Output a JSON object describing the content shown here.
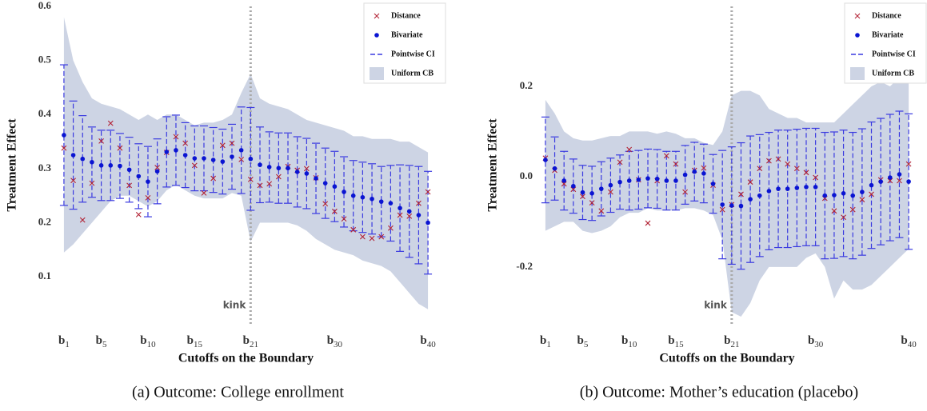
{
  "chart_data": [
    {
      "type": "errorbar",
      "caption": "(a) Outcome: College enrollment",
      "xlabel": "Cutoffs on the Boundary",
      "ylabel": "Treatment Effect",
      "x": [
        1,
        2,
        3,
        4,
        5,
        6,
        7,
        8,
        9,
        10,
        11,
        12,
        13,
        14,
        15,
        16,
        17,
        18,
        19,
        20,
        21,
        22,
        23,
        24,
        25,
        26,
        27,
        28,
        29,
        30,
        31,
        32,
        33,
        34,
        35,
        36,
        37,
        38,
        39,
        40
      ],
      "xlim": [
        0.15,
        40.85
      ],
      "xticks": [
        {
          "value": 1,
          "label": "b1"
        },
        {
          "value": 5,
          "label": "b5"
        },
        {
          "value": 10,
          "label": "b10"
        },
        {
          "value": 15,
          "label": "b15"
        },
        {
          "value": 21,
          "label": "b21"
        },
        {
          "value": 30,
          "label": "b30"
        },
        {
          "value": 40,
          "label": "b40"
        }
      ],
      "ylim": [
        0.013,
        0.6
      ],
      "yticks": [
        0.1,
        0.2,
        0.3,
        0.4,
        0.5,
        0.6
      ],
      "legend": "upper right",
      "annotation": {
        "text": "kink",
        "x": 21
      },
      "series": [
        {
          "name": "Distance",
          "color": "#b22234",
          "marker": "x",
          "values": [
            0.338,
            0.278,
            0.205,
            0.273,
            0.351,
            0.384,
            0.338,
            0.269,
            0.215,
            0.246,
            0.302,
            0.33,
            0.359,
            0.347,
            0.306,
            0.255,
            0.282,
            0.343,
            0.347,
            0.317,
            0.28,
            0.269,
            0.272,
            0.285,
            0.304,
            0.297,
            0.3,
            0.283,
            0.235,
            0.221,
            0.207,
            0.187,
            0.174,
            0.171,
            0.174,
            0.19,
            0.214,
            0.212,
            0.236,
            0.257
          ]
        },
        {
          "name": "Bivariate",
          "color": "#0a14d2",
          "marker": "dot",
          "values": [
            0.362,
            0.325,
            0.318,
            0.312,
            0.306,
            0.306,
            0.305,
            0.298,
            0.286,
            0.276,
            0.295,
            0.331,
            0.334,
            0.325,
            0.319,
            0.319,
            0.316,
            0.313,
            0.322,
            0.334,
            0.318,
            0.307,
            0.303,
            0.301,
            0.301,
            0.294,
            0.291,
            0.282,
            0.273,
            0.267,
            0.257,
            0.25,
            0.247,
            0.244,
            0.239,
            0.236,
            0.227,
            0.221,
            0.214,
            0.2
          ]
        }
      ],
      "ci": {
        "name": "Pointwise CI",
        "color": "#3a3ae0",
        "error": [
          0.13,
          0.1,
          0.08,
          0.065,
          0.065,
          0.065,
          0.06,
          0.06,
          0.06,
          0.065,
          0.06,
          0.065,
          0.065,
          0.06,
          0.06,
          0.06,
          0.06,
          0.06,
          0.06,
          0.08,
          0.095,
          0.07,
          0.065,
          0.065,
          0.065,
          0.065,
          0.065,
          0.065,
          0.065,
          0.065,
          0.065,
          0.065,
          0.065,
          0.065,
          0.065,
          0.07,
          0.08,
          0.085,
          0.09,
          0.095
        ]
      },
      "band": {
        "name": "Uniform CB",
        "color": "#cdd4e4",
        "upper": [
          0.58,
          0.5,
          0.46,
          0.43,
          0.42,
          0.415,
          0.41,
          0.4,
          0.39,
          0.4,
          0.39,
          0.4,
          0.4,
          0.39,
          0.38,
          0.385,
          0.385,
          0.39,
          0.4,
          0.44,
          0.475,
          0.43,
          0.42,
          0.415,
          0.41,
          0.4,
          0.39,
          0.385,
          0.38,
          0.375,
          0.37,
          0.36,
          0.36,
          0.355,
          0.355,
          0.355,
          0.35,
          0.35,
          0.34,
          0.33
        ],
        "lower": [
          0.145,
          0.16,
          0.18,
          0.2,
          0.22,
          0.24,
          0.25,
          0.25,
          0.24,
          0.23,
          0.24,
          0.26,
          0.27,
          0.26,
          0.25,
          0.245,
          0.245,
          0.245,
          0.255,
          0.25,
          0.165,
          0.2,
          0.2,
          0.2,
          0.2,
          0.195,
          0.185,
          0.17,
          0.16,
          0.15,
          0.145,
          0.14,
          0.13,
          0.125,
          0.12,
          0.11,
          0.09,
          0.07,
          0.05,
          0.04
        ]
      }
    },
    {
      "type": "errorbar",
      "caption": "(b) Outcome: Mother’s education (placebo)",
      "xlabel": "Cutoffs on the Boundary",
      "ylabel": "Treatment Effect",
      "x": [
        1,
        2,
        3,
        4,
        5,
        6,
        7,
        8,
        9,
        10,
        11,
        12,
        13,
        14,
        15,
        16,
        17,
        18,
        19,
        20,
        21,
        22,
        23,
        24,
        25,
        26,
        27,
        28,
        29,
        30,
        31,
        32,
        33,
        34,
        35,
        36,
        37,
        38,
        39,
        40
      ],
      "xlim": [
        0.15,
        40.85
      ],
      "xticks": [
        {
          "value": 1,
          "label": "b1"
        },
        {
          "value": 5,
          "label": "b5"
        },
        {
          "value": 10,
          "label": "b10"
        },
        {
          "value": 15,
          "label": "b15"
        },
        {
          "value": 21,
          "label": "b21"
        },
        {
          "value": 30,
          "label": "b30"
        },
        {
          "value": 40,
          "label": "b40"
        }
      ],
      "ylim": [
        -0.326,
        0.377
      ],
      "yticks": [
        -0.2,
        {
          "value": 0,
          "label": "0.0"
        },
        0.2
      ],
      "legend": "upper right",
      "annotation": {
        "text": "kink",
        "x": 21
      },
      "series": [
        {
          "name": "Distance",
          "color": "#b22234",
          "marker": "x",
          "values": [
            0.041,
            0.014,
            -0.016,
            -0.028,
            -0.044,
            -0.058,
            -0.076,
            -0.034,
            0.032,
            0.06,
            -0.007,
            -0.103,
            -0.009,
            0.046,
            0.028,
            -0.034,
            0.014,
            0.019,
            -0.019,
            -0.073,
            -0.062,
            -0.039,
            -0.012,
            0.018,
            0.035,
            0.039,
            0.028,
            0.018,
            0.009,
            -0.002,
            -0.048,
            -0.076,
            -0.09,
            -0.073,
            -0.051,
            -0.039,
            -0.007,
            -0.009,
            -0.009,
            0.028
          ]
        },
        {
          "name": "Bivariate",
          "color": "#0a14d2",
          "marker": "dot",
          "values": [
            0.037,
            0.018,
            -0.009,
            -0.021,
            -0.035,
            -0.037,
            -0.027,
            -0.019,
            -0.012,
            -0.009,
            -0.007,
            -0.004,
            -0.005,
            -0.009,
            -0.009,
            0.004,
            0.011,
            0.007,
            -0.016,
            -0.062,
            -0.064,
            -0.065,
            -0.05,
            -0.042,
            -0.032,
            -0.027,
            -0.027,
            -0.025,
            -0.023,
            -0.023,
            -0.042,
            -0.041,
            -0.037,
            -0.042,
            -0.034,
            -0.019,
            -0.011,
            -0.002,
            0.005,
            -0.011
          ]
        }
      ],
      "ci": {
        "name": "Pointwise CI",
        "color": "#3a3ae0",
        "error": [
          0.095,
          0.07,
          0.065,
          0.06,
          0.06,
          0.06,
          0.06,
          0.06,
          0.06,
          0.065,
          0.065,
          0.065,
          0.065,
          0.065,
          0.065,
          0.065,
          0.065,
          0.065,
          0.065,
          0.12,
          0.13,
          0.14,
          0.14,
          0.135,
          0.13,
          0.13,
          0.13,
          0.13,
          0.13,
          0.13,
          0.14,
          0.14,
          0.14,
          0.14,
          0.14,
          0.14,
          0.14,
          0.14,
          0.14,
          0.15
        ]
      },
      "band": {
        "name": "Uniform CB",
        "color": "#cdd4e4",
        "upper": [
          0.17,
          0.14,
          0.1,
          0.085,
          0.08,
          0.08,
          0.085,
          0.09,
          0.09,
          0.1,
          0.1,
          0.1,
          0.095,
          0.1,
          0.095,
          0.085,
          0.085,
          0.075,
          0.07,
          0.1,
          0.18,
          0.19,
          0.19,
          0.18,
          0.15,
          0.14,
          0.13,
          0.13,
          0.12,
          0.12,
          0.12,
          0.12,
          0.14,
          0.16,
          0.18,
          0.2,
          0.21,
          0.2,
          0.22,
          0.25
        ],
        "lower": [
          -0.12,
          -0.11,
          -0.1,
          -0.1,
          -0.12,
          -0.125,
          -0.12,
          -0.11,
          -0.09,
          -0.08,
          -0.08,
          -0.07,
          -0.075,
          -0.075,
          -0.075,
          -0.07,
          -0.07,
          -0.075,
          -0.085,
          -0.14,
          -0.3,
          -0.31,
          -0.28,
          -0.23,
          -0.2,
          -0.2,
          -0.2,
          -0.2,
          -0.18,
          -0.17,
          -0.2,
          -0.27,
          -0.23,
          -0.25,
          -0.25,
          -0.24,
          -0.22,
          -0.2,
          -0.18,
          -0.16
        ]
      }
    }
  ]
}
